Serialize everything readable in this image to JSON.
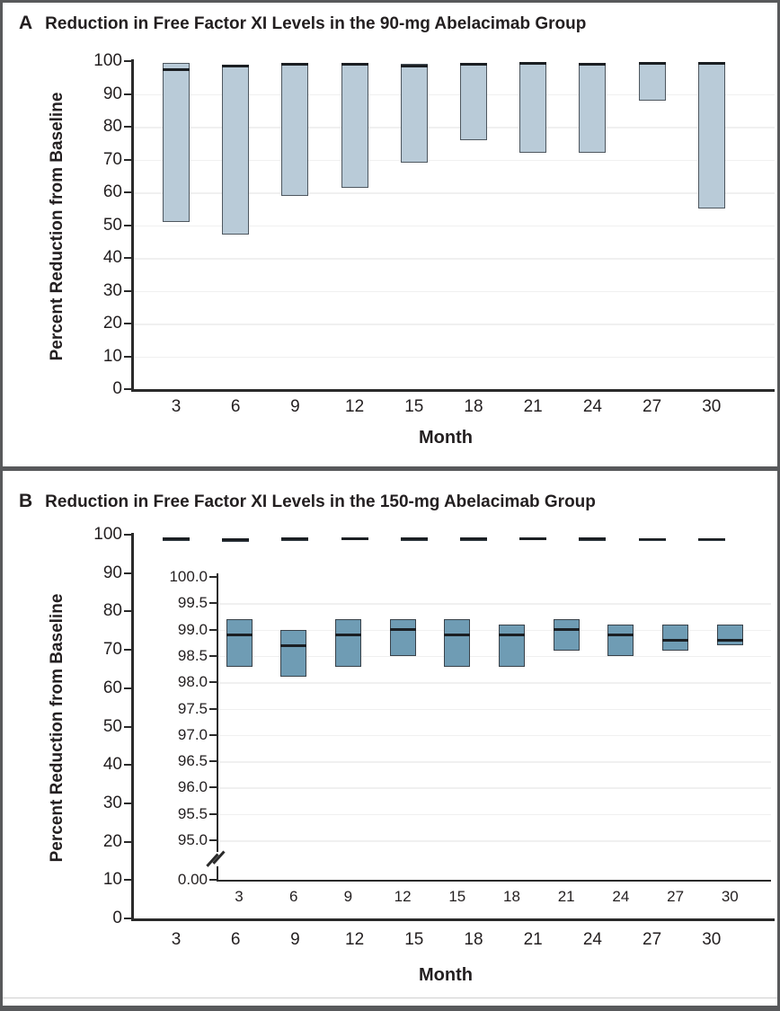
{
  "figure": {
    "panels": [
      {
        "label": "A",
        "title": "Reduction in Free Factor XI Levels in the 90-mg Abelacimab Group",
        "y_axis_title": "Percent Reduction from Baseline",
        "x_axis_title": "Month",
        "y_ticks": [
          "100",
          "90",
          "80",
          "70",
          "60",
          "50",
          "40",
          "30",
          "20",
          "10",
          "0"
        ],
        "x_ticks": [
          "3",
          "6",
          "9",
          "12",
          "15",
          "18",
          "21",
          "24",
          "27",
          "30"
        ]
      },
      {
        "label": "B",
        "title": "Reduction in Free Factor XI Levels in the 150-mg Abelacimab Group",
        "y_axis_title": "Percent Reduction from Baseline",
        "x_axis_title": "Month",
        "y_ticks": [
          "100",
          "90",
          "80",
          "70",
          "60",
          "50",
          "40",
          "30",
          "20",
          "10",
          "0"
        ],
        "x_ticks": [
          "3",
          "6",
          "9",
          "12",
          "15",
          "18",
          "21",
          "24",
          "27",
          "30"
        ],
        "inset": {
          "y_ticks": [
            "100.0",
            "99.5",
            "99.0",
            "98.5",
            "98.0",
            "97.5",
            "97.0",
            "96.5",
            "96.0",
            "95.5",
            "95.0"
          ],
          "y_break_label": "0.00",
          "x_ticks": [
            "3",
            "6",
            "9",
            "12",
            "15",
            "18",
            "21",
            "24",
            "27",
            "30"
          ]
        }
      }
    ]
  },
  "chart_data": [
    {
      "type": "bar",
      "subtype": "range-box-with-median",
      "panel": "A",
      "title": "Reduction in Free Factor XI Levels in the 90-mg Abelacimab Group",
      "xlabel": "Month",
      "ylabel": "Percent Reduction from Baseline",
      "ylim": [
        0,
        100
      ],
      "grid": "light horizontal every 10",
      "categories": [
        3,
        6,
        9,
        12,
        15,
        18,
        21,
        24,
        27,
        30
      ],
      "series": [
        {
          "name": "range_low",
          "values": [
            51,
            47,
            59,
            61.5,
            69,
            76,
            72,
            72,
            88,
            55
          ]
        },
        {
          "name": "range_high",
          "values": [
            99.4,
            98.9,
            99.4,
            99.4,
            99.3,
            99.4,
            99.4,
            99.4,
            99.4,
            99.4
          ]
        },
        {
          "name": "median",
          "values": [
            97.4,
            98.6,
            99.1,
            99.1,
            98.6,
            99.1,
            99.2,
            99.1,
            99.2,
            99.2
          ]
        }
      ]
    },
    {
      "type": "bar",
      "subtype": "range-box-with-median",
      "panel": "B",
      "title": "Reduction in Free Factor XI Levels in the 150-mg Abelacimab Group",
      "xlabel": "Month",
      "ylabel": "Percent Reduction from Baseline",
      "ylim": [
        0,
        100
      ],
      "grid": "off",
      "categories": [
        3,
        6,
        9,
        12,
        15,
        18,
        21,
        24,
        27,
        30
      ],
      "series": [
        {
          "name": "range_low",
          "values": [
            98.3,
            98.1,
            98.3,
            98.5,
            98.3,
            98.3,
            98.6,
            98.5,
            98.6,
            98.7
          ]
        },
        {
          "name": "range_high",
          "values": [
            99.2,
            99.0,
            99.2,
            99.2,
            99.2,
            99.1,
            99.2,
            99.1,
            99.1,
            99.1
          ]
        },
        {
          "name": "median",
          "values": [
            98.9,
            98.7,
            98.9,
            99.0,
            98.9,
            98.9,
            99.0,
            98.9,
            98.8,
            98.8
          ]
        }
      ]
    },
    {
      "type": "bar",
      "subtype": "range-box-with-median-inset",
      "panel": "B-inset",
      "note": "magnified view of panel B with y-axis 95.0 to 100.0 and axis break to 0.00",
      "xlabel": "Month",
      "ylim": [
        95,
        100
      ],
      "axis_break_to": 0,
      "grid": "light horizontal every 0.5",
      "categories": [
        3,
        6,
        9,
        12,
        15,
        18,
        21,
        24,
        27,
        30
      ],
      "series": [
        {
          "name": "range_low",
          "values": [
            98.3,
            98.1,
            98.3,
            98.5,
            98.3,
            98.3,
            98.6,
            98.5,
            98.6,
            98.7
          ]
        },
        {
          "name": "range_high",
          "values": [
            99.2,
            99.0,
            99.2,
            99.2,
            99.2,
            99.1,
            99.2,
            99.1,
            99.1,
            99.1
          ]
        },
        {
          "name": "median",
          "values": [
            98.9,
            98.7,
            98.9,
            99.0,
            98.9,
            98.9,
            99.0,
            98.9,
            98.8,
            98.8
          ]
        }
      ]
    }
  ],
  "colors": {
    "panel_a_fill": "#b9cbd8",
    "panel_b_fill": "#6f9cb4",
    "box_border_a": "#4e575f",
    "box_border_b": "#39424a",
    "median": "#1b1f23",
    "axis": "#2a2a2a",
    "grid": "#f0f0f0",
    "frame": "#58595b",
    "hairline": "#cfcfcf",
    "text": "#231f20"
  }
}
